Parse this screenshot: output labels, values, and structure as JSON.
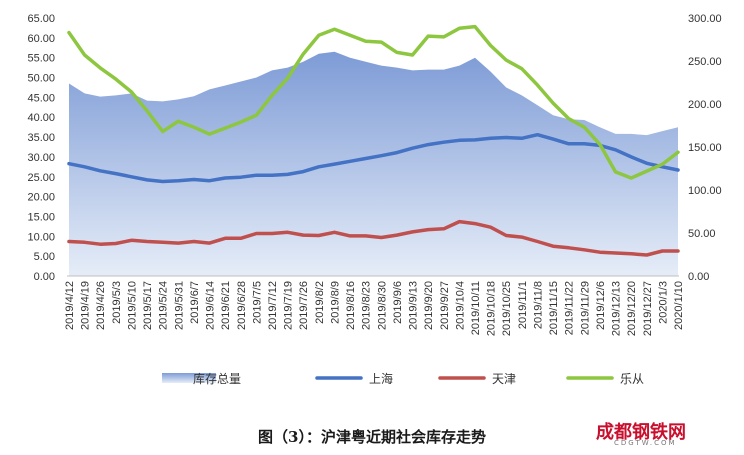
{
  "chart_data": {
    "type": "area+line",
    "categories": [
      "2019/4/12",
      "2019/4/19",
      "2019/4/26",
      "2019/5/3",
      "2019/5/10",
      "2019/5/17",
      "2019/5/24",
      "2019/5/31",
      "2019/6/7",
      "2019/6/14",
      "2019/6/21",
      "2019/6/28",
      "2019/7/5",
      "2019/7/12",
      "2019/7/19",
      "2019/7/26",
      "2019/8/2",
      "2019/8/9",
      "2019/8/16",
      "2019/8/23",
      "2019/8/30",
      "2019/9/6",
      "2019/9/13",
      "2019/9/20",
      "2019/9/27",
      "2019/10/4",
      "2019/10/11",
      "2019/10/18",
      "2019/10/25",
      "2019/11/1",
      "2019/11/8",
      "2019/11/15",
      "2019/11/22",
      "2019/11/29",
      "2019/12/6",
      "2019/12/13",
      "2019/12/20",
      "2019/12/27",
      "2020/1/3",
      "2020/1/10"
    ],
    "x_tick_labels": [
      "2019/4/12",
      "2019/4/19",
      "2019/4/26",
      "2019/5/3",
      "2019/5/10",
      "2019/5/17",
      "2019/5/24",
      "2019/5/31",
      "2019/6/7",
      "2019/6/14",
      "2019/6/21",
      "2019/6/28",
      "2019/7/5",
      "2019/7/12",
      "2019/7/19",
      "2019/7/26",
      "2019/8/2",
      "2019/8/9",
      "2019/8/16",
      "2019/8/23",
      "2019/8/30",
      "2019/9/6",
      "2019/9/13",
      "2019/9/20",
      "2019/9/27",
      "2019/10/4",
      "2019/10/11",
      "2019/10/18",
      "2019/10/25",
      "2019/11/1",
      "2019/11/8",
      "2019/11/15",
      "2019/11/22",
      "2019/11/29",
      "2019/12/6",
      "2019/12/13",
      "2019/12/20",
      "2019/12/27",
      "2020/1/3",
      "2020/1/10"
    ],
    "y_left": {
      "ylim": [
        0,
        65
      ],
      "ticks": [
        "0.00",
        "5.00",
        "10.00",
        "15.00",
        "20.00",
        "25.00",
        "30.00",
        "35.00",
        "40.00",
        "45.00",
        "50.00",
        "55.00",
        "60.00",
        "65.00"
      ]
    },
    "y_right": {
      "ylim": [
        0,
        300
      ],
      "ticks": [
        "0.00",
        "50.00",
        "100.00",
        "150.00",
        "200.00",
        "250.00",
        "300.00"
      ]
    },
    "series": [
      {
        "name": "库存总量",
        "type": "area",
        "axis": "left",
        "color": "#8eaadb",
        "values": [
          48.5,
          46.0,
          45.2,
          45.5,
          46.0,
          44.2,
          44.0,
          44.5,
          45.3,
          47.0,
          48.0,
          49.0,
          50.0,
          51.8,
          52.5,
          54.0,
          56.0,
          56.5,
          55.0,
          54.0,
          53.0,
          52.5,
          51.8,
          52.0,
          52.0,
          53.0,
          55.0,
          51.5,
          47.5,
          45.5,
          43.0,
          40.5,
          39.5,
          39.3,
          37.5,
          35.8,
          35.8,
          35.5,
          36.5,
          37.5
        ]
      },
      {
        "name": "上海",
        "type": "line",
        "axis": "left",
        "color": "#4472c4",
        "values": [
          28.3,
          27.5,
          26.5,
          25.8,
          25.0,
          24.2,
          23.8,
          24.0,
          24.3,
          24.0,
          24.7,
          24.9,
          25.4,
          25.4,
          25.6,
          26.3,
          27.5,
          28.2,
          28.9,
          29.6,
          30.3,
          31.1,
          32.2,
          33.1,
          33.7,
          34.2,
          34.3,
          34.7,
          34.9,
          34.7,
          35.6,
          34.5,
          33.3,
          33.3,
          32.9,
          31.8,
          30.0,
          28.4,
          27.5,
          26.7
        ]
      },
      {
        "name": "天津",
        "type": "line",
        "axis": "left",
        "color": "#c0504d",
        "values": [
          8.7,
          8.5,
          8.0,
          8.2,
          9.0,
          8.7,
          8.5,
          8.3,
          8.7,
          8.3,
          9.5,
          9.5,
          10.7,
          10.7,
          11.0,
          10.3,
          10.2,
          11.0,
          10.1,
          10.1,
          9.7,
          10.3,
          11.1,
          11.7,
          11.9,
          13.7,
          13.2,
          12.3,
          10.2,
          9.8,
          8.7,
          7.5,
          7.1,
          6.6,
          6.0,
          5.8,
          5.6,
          5.3,
          6.3,
          6.3
        ]
      },
      {
        "name": "乐从",
        "type": "line",
        "axis": "right",
        "color": "#8dc63f",
        "values": [
          283,
          257,
          242,
          229,
          214,
          192,
          168,
          180,
          173,
          165,
          172,
          179,
          187,
          210,
          230,
          258,
          280,
          287,
          280,
          273,
          272,
          260,
          257,
          279,
          278,
          288,
          290,
          268,
          251,
          241,
          222,
          201,
          183,
          173,
          153,
          121,
          114,
          122,
          130,
          144
        ]
      }
    ],
    "legend": [
      "库存总量",
      "上海",
      "天津",
      "乐从"
    ],
    "legend_position": "bottom",
    "grid": false,
    "title": "图（3）：沪津粤近期社会库存走势"
  },
  "caption": "图（3）：沪津粤近期社会库存走势",
  "watermark": {
    "text": "成都钢铁网",
    "sub": "CDGTW.COM"
  }
}
